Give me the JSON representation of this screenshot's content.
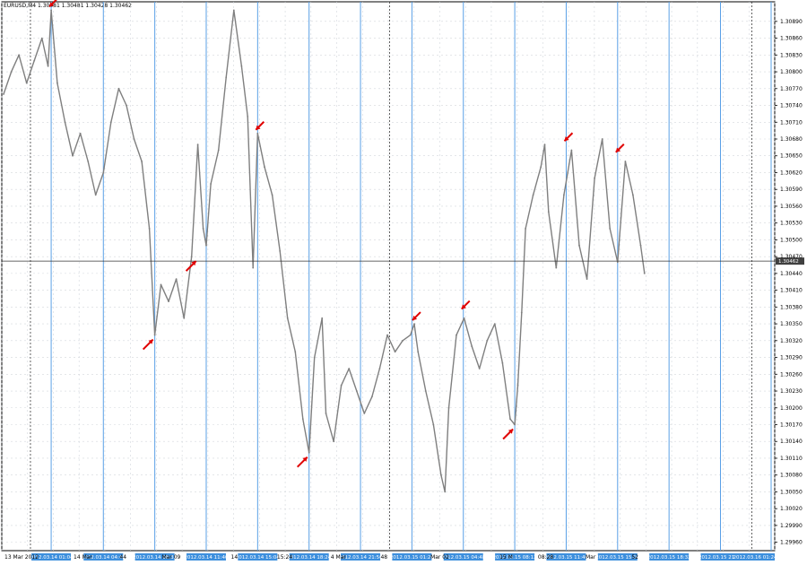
{
  "window": {
    "symbol_header": "EURUSD,M4  1.30481 1.30481 1.30428 1.30462"
  },
  "colors": {
    "background": "#ffffff",
    "price_line": "#7f7f7f",
    "grid": "#d3d7dc",
    "vline": "#5aa0e6",
    "vtag_bg": "#3d8fdd",
    "period_sep": "#3a3a3a",
    "arrow": "#e00000",
    "hline": "#333333",
    "price_tag_bg": "#404040"
  },
  "chart_data": {
    "type": "line",
    "symbol": "EURUSD",
    "timeframe": "M4",
    "ohlc_header": {
      "open": 1.30481,
      "high": 1.30481,
      "low": 1.30428,
      "close": 1.30462
    },
    "current_price": 1.30462,
    "current_price_label": "1.30462",
    "ylim": [
      1.29945,
      1.30925
    ],
    "y_ticks": [
      "1.30890",
      "1.30860",
      "1.30830",
      "1.30800",
      "1.30770",
      "1.30740",
      "1.30710",
      "1.30680",
      "1.30650",
      "1.30620",
      "1.30590",
      "1.30560",
      "1.30530",
      "1.30500",
      "1.30470",
      "1.30440",
      "1.30410",
      "1.30380",
      "1.30350",
      "1.30320",
      "1.30290",
      "1.30260",
      "1.30230",
      "1.30200",
      "1.30170",
      "1.30140",
      "1.30110",
      "1.30080",
      "1.30050",
      "1.30020",
      "1.29990",
      "1.29960"
    ],
    "y_tick_values": [
      1.3089,
      1.3086,
      1.3083,
      1.308,
      1.3077,
      1.3074,
      1.3071,
      1.3068,
      1.3065,
      1.3062,
      1.3059,
      1.3056,
      1.3053,
      1.305,
      1.3047,
      1.3044,
      1.3041,
      1.3038,
      1.3035,
      1.3032,
      1.3029,
      1.3026,
      1.3023,
      1.302,
      1.3017,
      1.3014,
      1.3011,
      1.3008,
      1.3005,
      1.3002,
      1.2999,
      1.2996
    ],
    "x_ticks": [
      {
        "label": "13 Mar 2012",
        "bar": 0
      },
      {
        "label": "14 Mar",
        "bar": 0.09
      },
      {
        "label": "44",
        "bar": 0.15
      },
      {
        "label": "Mar 09",
        "bar": 0.205
      },
      {
        "label": "14",
        "bar": 0.295
      },
      {
        "label": "15:24",
        "bar": 0.355
      },
      {
        "label": "4 Mar",
        "bar": 0.425
      },
      {
        "label": "48",
        "bar": 0.49
      },
      {
        "label": "Mar 02",
        "bar": 0.555
      },
      {
        "label": "15 M",
        "bar": 0.645
      },
      {
        "label": "08:28",
        "bar": 0.695
      },
      {
        "label": "Mar",
        "bar": 0.757
      },
      {
        "label": "52",
        "bar": 0.817
      }
    ],
    "vlines": [
      {
        "label": "2012.03.14 01:04",
        "bar": 0.062
      },
      {
        "label": "2012.03.14 04:48",
        "bar": 0.13
      },
      {
        "label": "2012.03.14 08:32",
        "bar": 0.197
      },
      {
        "label": "2012.03.14 11:40",
        "bar": 0.264
      },
      {
        "label": "2012.03.14 15:04",
        "bar": 0.331
      },
      {
        "label": "2012.03.14 18:24",
        "bar": 0.398
      },
      {
        "label": "2012.03.14 21:56",
        "bar": 0.465
      },
      {
        "label": "2012.03.15 01:20",
        "bar": 0.532
      },
      {
        "label": "2012.03.15 04:48",
        "bar": 0.599
      },
      {
        "label": "2012.03.15 08:12",
        "bar": 0.666
      },
      {
        "label": "2012.03.15 11:40",
        "bar": 0.733
      },
      {
        "label": "2012.03.15 15:04",
        "bar": 0.8
      },
      {
        "label": "2012.03.15 18:32",
        "bar": 0.867
      },
      {
        "label": "2012.03.15 21:56",
        "bar": 0.934
      },
      {
        "label": "2012.03.16 01:24",
        "bar": 1.0
      }
    ],
    "period_separators": [
      0.035,
      0.503,
      0.975
    ],
    "series": [
      {
        "values": [
          [
            0,
            1.3076
          ],
          [
            0.01,
            1.308
          ],
          [
            0.02,
            1.3083
          ],
          [
            0.03,
            1.3078
          ],
          [
            0.04,
            1.3082
          ],
          [
            0.05,
            1.3086
          ],
          [
            0.058,
            1.3081
          ],
          [
            0.062,
            1.3091
          ],
          [
            0.07,
            1.3078
          ],
          [
            0.08,
            1.3071
          ],
          [
            0.09,
            1.3065
          ],
          [
            0.1,
            1.3069
          ],
          [
            0.11,
            1.3064
          ],
          [
            0.12,
            1.3058
          ],
          [
            0.13,
            1.3062
          ],
          [
            0.14,
            1.3071
          ],
          [
            0.15,
            1.3077
          ],
          [
            0.16,
            1.3074
          ],
          [
            0.17,
            1.3068
          ],
          [
            0.18,
            1.3064
          ],
          [
            0.19,
            1.3052
          ],
          [
            0.197,
            1.3033
          ],
          [
            0.205,
            1.3042
          ],
          [
            0.215,
            1.3039
          ],
          [
            0.225,
            1.3043
          ],
          [
            0.235,
            1.3036
          ],
          [
            0.245,
            1.3047
          ],
          [
            0.253,
            1.3067
          ],
          [
            0.26,
            1.3052
          ],
          [
            0.264,
            1.3049
          ],
          [
            0.27,
            1.306
          ],
          [
            0.28,
            1.3066
          ],
          [
            0.29,
            1.3079
          ],
          [
            0.3,
            1.3091
          ],
          [
            0.31,
            1.3081
          ],
          [
            0.318,
            1.3072
          ],
          [
            0.325,
            1.3045
          ],
          [
            0.331,
            1.3069
          ],
          [
            0.34,
            1.3063
          ],
          [
            0.35,
            1.3058
          ],
          [
            0.36,
            1.3048
          ],
          [
            0.37,
            1.3036
          ],
          [
            0.38,
            1.303
          ],
          [
            0.39,
            1.3018
          ],
          [
            0.398,
            1.3012
          ],
          [
            0.405,
            1.3029
          ],
          [
            0.415,
            1.3036
          ],
          [
            0.42,
            1.3019
          ],
          [
            0.43,
            1.3014
          ],
          [
            0.44,
            1.3024
          ],
          [
            0.45,
            1.3027
          ],
          [
            0.46,
            1.3023
          ],
          [
            0.47,
            1.3019
          ],
          [
            0.48,
            1.3022
          ],
          [
            0.49,
            1.3027
          ],
          [
            0.5,
            1.3033
          ],
          [
            0.51,
            1.303
          ],
          [
            0.52,
            1.3032
          ],
          [
            0.53,
            1.3033
          ],
          [
            0.535,
            1.3035
          ],
          [
            0.54,
            1.303
          ],
          [
            0.55,
            1.3023
          ],
          [
            0.56,
            1.3017
          ],
          [
            0.57,
            1.3008
          ],
          [
            0.575,
            1.3005
          ],
          [
            0.58,
            1.302
          ],
          [
            0.59,
            1.3033
          ],
          [
            0.6,
            1.3036
          ],
          [
            0.61,
            1.3031
          ],
          [
            0.62,
            1.3027
          ],
          [
            0.63,
            1.3032
          ],
          [
            0.64,
            1.3035
          ],
          [
            0.65,
            1.3028
          ],
          [
            0.66,
            1.3018
          ],
          [
            0.666,
            1.3017
          ],
          [
            0.67,
            1.3024
          ],
          [
            0.675,
            1.3037
          ],
          [
            0.68,
            1.3052
          ],
          [
            0.69,
            1.3058
          ],
          [
            0.7,
            1.3063
          ],
          [
            0.705,
            1.3067
          ],
          [
            0.71,
            1.3055
          ],
          [
            0.72,
            1.3045
          ],
          [
            0.73,
            1.3058
          ],
          [
            0.74,
            1.3066
          ],
          [
            0.75,
            1.3049
          ],
          [
            0.76,
            1.3043
          ],
          [
            0.77,
            1.3061
          ],
          [
            0.78,
            1.3068
          ],
          [
            0.79,
            1.3052
          ],
          [
            0.8,
            1.3046
          ],
          [
            0.81,
            1.3064
          ],
          [
            0.82,
            1.3058
          ],
          [
            0.83,
            1.3049
          ],
          [
            0.835,
            1.3044
          ]
        ]
      }
    ],
    "arrows": [
      {
        "dir": "down",
        "bar": 0.062,
        "price": 1.3091
      },
      {
        "dir": "up",
        "bar": 0.197,
        "price": 1.3033
      },
      {
        "dir": "up",
        "bar": 0.253,
        "price": 1.3047
      },
      {
        "dir": "down",
        "bar": 0.331,
        "price": 1.3069
      },
      {
        "dir": "up",
        "bar": 0.398,
        "price": 1.3012
      },
      {
        "dir": "down",
        "bar": 0.535,
        "price": 1.3035
      },
      {
        "dir": "down",
        "bar": 0.599,
        "price": 1.3037
      },
      {
        "dir": "up",
        "bar": 0.666,
        "price": 1.3017
      },
      {
        "dir": "down",
        "bar": 0.733,
        "price": 1.3067
      },
      {
        "dir": "down",
        "bar": 0.8,
        "price": 1.3065
      }
    ]
  }
}
